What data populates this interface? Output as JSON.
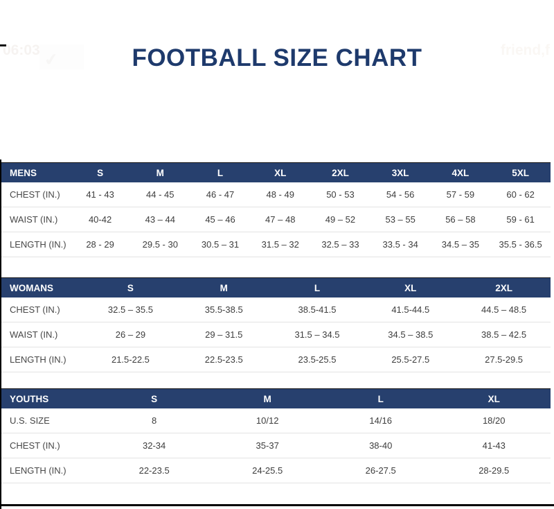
{
  "title": "FOOTBALL SIZE CHART",
  "watermarks": {
    "top_left_time": "06:03",
    "top_right_text": "friend,f",
    "check_glyph": "✔"
  },
  "theme": {
    "header_bg": "#27406e",
    "title_color": "#1e3a6c",
    "row_line": "#e3e3e3",
    "value_text": "#3d3d3d"
  },
  "tables": [
    {
      "name": "mens",
      "header": [
        "MENS",
        "S",
        "M",
        "L",
        "XL",
        "2XL",
        "3XL",
        "4XL",
        "5XL"
      ],
      "rows": [
        {
          "cells": [
            "CHEST (IN.)",
            "41 - 43",
            "44 - 45",
            "46 - 47",
            "48 - 49",
            "50 - 53",
            "54 - 56",
            "57 - 59",
            "60 - 62"
          ]
        },
        {
          "cells": [
            "WAIST (IN.)",
            "40-42",
            "43 – 44",
            "45 – 46",
            "47 – 48",
            "49 – 52",
            "53 – 55",
            "56 – 58",
            "59 - 61"
          ]
        },
        {
          "cells": [
            "LENGTH (IN.)",
            "28 - 29",
            "29.5 - 30",
            "30.5 – 31",
            "31.5 – 32",
            "32.5 – 33",
            "33.5 - 34",
            "34.5 – 35",
            "35.5 - 36.5"
          ]
        }
      ]
    },
    {
      "name": "womans",
      "header": [
        "WOMANS",
        "S",
        "M",
        "L",
        "XL",
        "2XL"
      ],
      "rows": [
        {
          "cells": [
            "CHEST (IN.)",
            "32.5 – 35.5",
            "35.5-38.5",
            "38.5-41.5",
            "41.5-44.5",
            "44.5 – 48.5"
          ]
        },
        {
          "cells": [
            "WAIST (IN.)",
            "26 – 29",
            "29 – 31.5",
            "31.5 – 34.5",
            "34.5 – 38.5",
            "38.5 – 42.5"
          ]
        },
        {
          "cells": [
            "LENGTH (IN.)",
            "21.5-22.5",
            "22.5-23.5",
            "23.5-25.5",
            "25.5-27.5",
            "27.5-29.5"
          ]
        }
      ]
    },
    {
      "name": "youths",
      "header": [
        "YOUTHS",
        "S",
        "M",
        "L",
        "XL"
      ],
      "rows": [
        {
          "cells": [
            "U.S. SIZE",
            "8",
            "10/12",
            "14/16",
            "18/20"
          ]
        },
        {
          "cells": [
            "CHEST (IN.)",
            "32-34",
            "35-37",
            "38-40",
            "41-43"
          ]
        },
        {
          "cells": [
            "LENGTH (IN.)",
            "22-23.5",
            "24-25.5",
            "26-27.5",
            "28-29.5"
          ]
        }
      ]
    }
  ]
}
